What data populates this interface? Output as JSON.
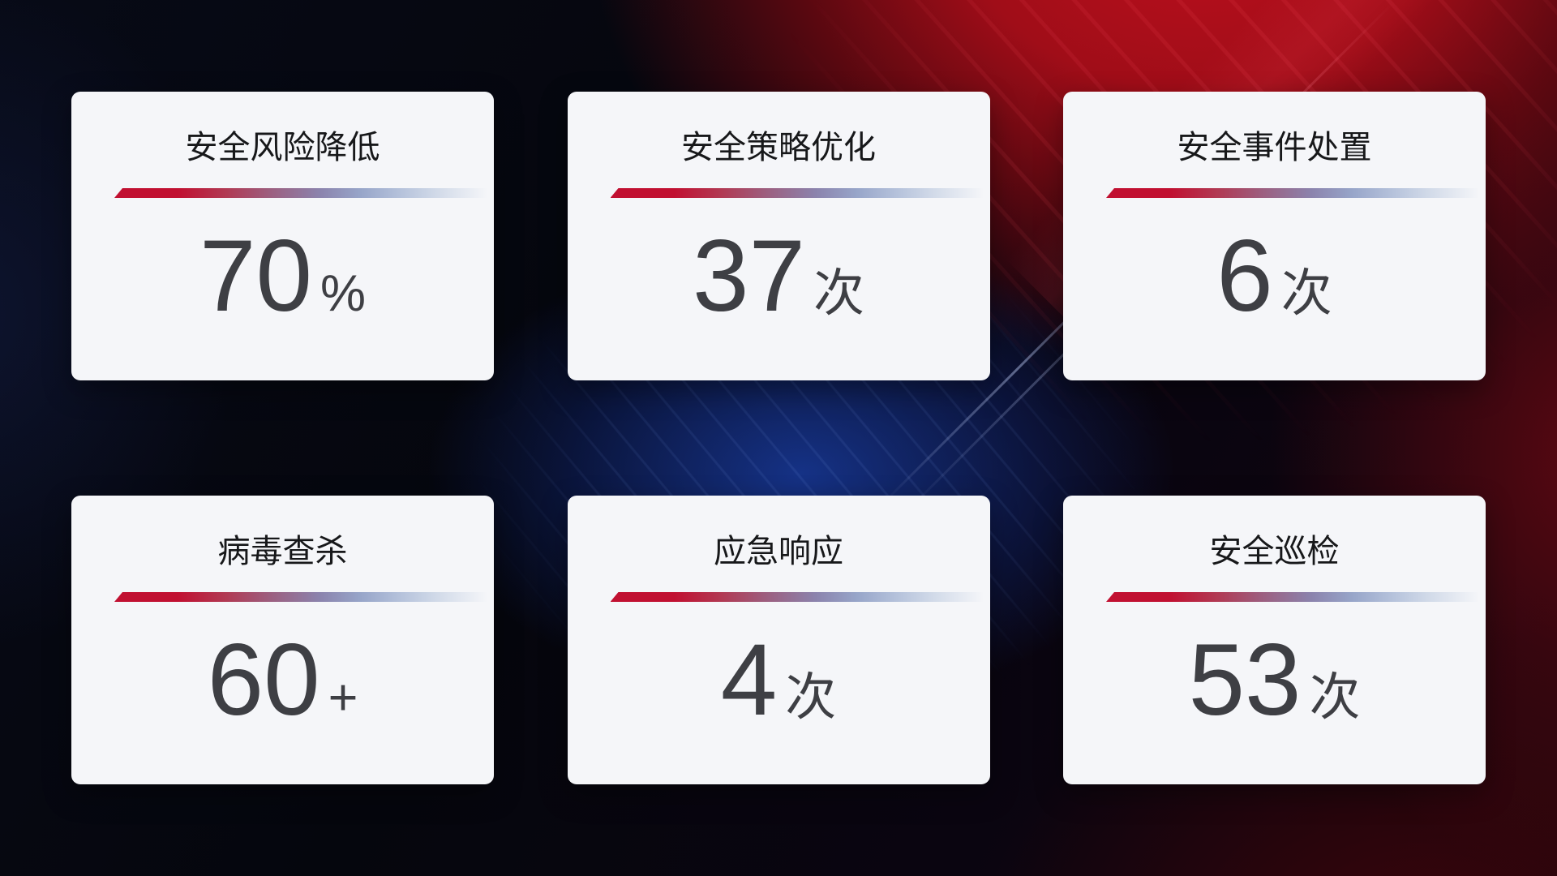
{
  "cards": [
    {
      "title": "安全风险降低",
      "value": "70",
      "unit": "%"
    },
    {
      "title": "安全策略优化",
      "value": "37",
      "unit": "次"
    },
    {
      "title": "安全事件处置",
      "value": "6",
      "unit": "次"
    },
    {
      "title": "病毒查杀",
      "value": "60",
      "unit": "+"
    },
    {
      "title": "应急响应",
      "value": "4",
      "unit": "次"
    },
    {
      "title": "安全巡检",
      "value": "53",
      "unit": "次"
    }
  ],
  "colors": {
    "accent_red": "#c11031",
    "divider_blue": "#97a5c9",
    "card_background": "#f5f6f9",
    "title_text": "#17181a",
    "value_text": "#3e3f44",
    "background_blue": "#16348c",
    "background_red": "#bf101e",
    "background_base": "#05060d"
  }
}
